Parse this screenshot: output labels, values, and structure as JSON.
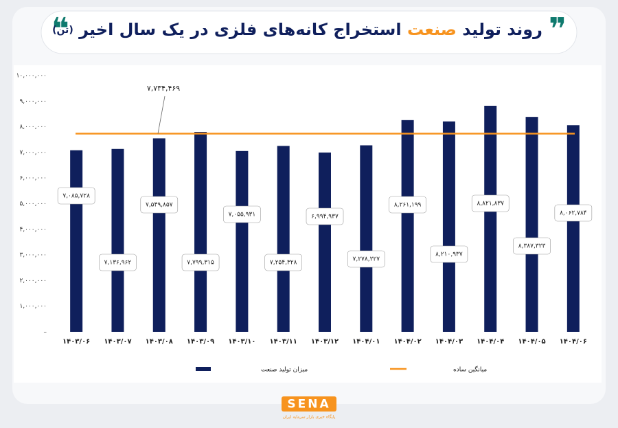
{
  "chart_data": {
    "type": "bar",
    "title_parts": [
      "روند تولید",
      "صنعت",
      "استخراج کانه‌های فلزی در یک سال اخیر",
      "(تن)"
    ],
    "categories": [
      "۱۴۰۳/۰۶",
      "۱۴۰۳/۰۷",
      "۱۴۰۳/۰۸",
      "۱۴۰۳/۰۹",
      "۱۴۰۳/۱۰",
      "۱۴۰۳/۱۱",
      "۱۴۰۳/۱۲",
      "۱۴۰۴/۰۱",
      "۱۴۰۴/۰۲",
      "۱۴۰۴/۰۳",
      "۱۴۰۴/۰۴",
      "۱۴۰۴/۰۵",
      "۱۴۰۴/۰۶"
    ],
    "series": [
      {
        "name": "میزان تولید صنعت",
        "color": "#0f1f5c",
        "values": [
          7085728,
          7136962,
          7549857,
          7799315,
          7055931,
          7254328,
          6994937,
          7278227,
          8261199,
          8210937,
          8821837,
          8387323,
          8062784
        ],
        "value_labels": [
          "۷,۰۸۵,۷۲۸",
          "۷,۱۳۶,۹۶۲",
          "۷,۵۴۹,۸۵۷",
          "۷,۷۹۹,۳۱۵",
          "۷,۰۵۵,۹۳۱",
          "۷,۲۵۴,۳۲۸",
          "۶,۹۹۴,۹۳۷",
          "۷,۲۷۸,۲۲۷",
          "۸,۲۶۱,۱۹۹",
          "۸,۲۱۰,۹۳۷",
          "۸,۸۲۱,۸۳۷",
          "۸,۳۸۷,۳۲۳",
          "۸,۰۶۲,۷۸۴"
        ]
      }
    ],
    "reference_line": {
      "name": "میانگین ساده",
      "color": "#f7931e",
      "value": 7734469,
      "value_label": "۷,۷۳۴,۴۶۹"
    },
    "ylim": [
      0,
      10000000
    ],
    "yticks": [
      {
        "value": 0,
        "label": "–"
      },
      {
        "value": 1000000,
        "label": "۱,۰۰۰,۰۰۰"
      },
      {
        "value": 2000000,
        "label": "۲,۰۰۰,۰۰۰"
      },
      {
        "value": 3000000,
        "label": "۳,۰۰۰,۰۰۰"
      },
      {
        "value": 4000000,
        "label": "۴,۰۰۰,۰۰۰"
      },
      {
        "value": 5000000,
        "label": "۵,۰۰۰,۰۰۰"
      },
      {
        "value": 6000000,
        "label": "۶,۰۰۰,۰۰۰"
      },
      {
        "value": 7000000,
        "label": "۷,۰۰۰,۰۰۰"
      },
      {
        "value": 8000000,
        "label": "۸,۰۰۰,۰۰۰"
      },
      {
        "value": 9000000,
        "label": "۹,۰۰۰,۰۰۰"
      },
      {
        "value": 10000000,
        "label": "۱۰,۰۰۰,۰۰۰"
      }
    ],
    "grid": false,
    "logo": "SENA",
    "logo_tagline": "پایگاه خبری بازار سرمایه ایران"
  }
}
